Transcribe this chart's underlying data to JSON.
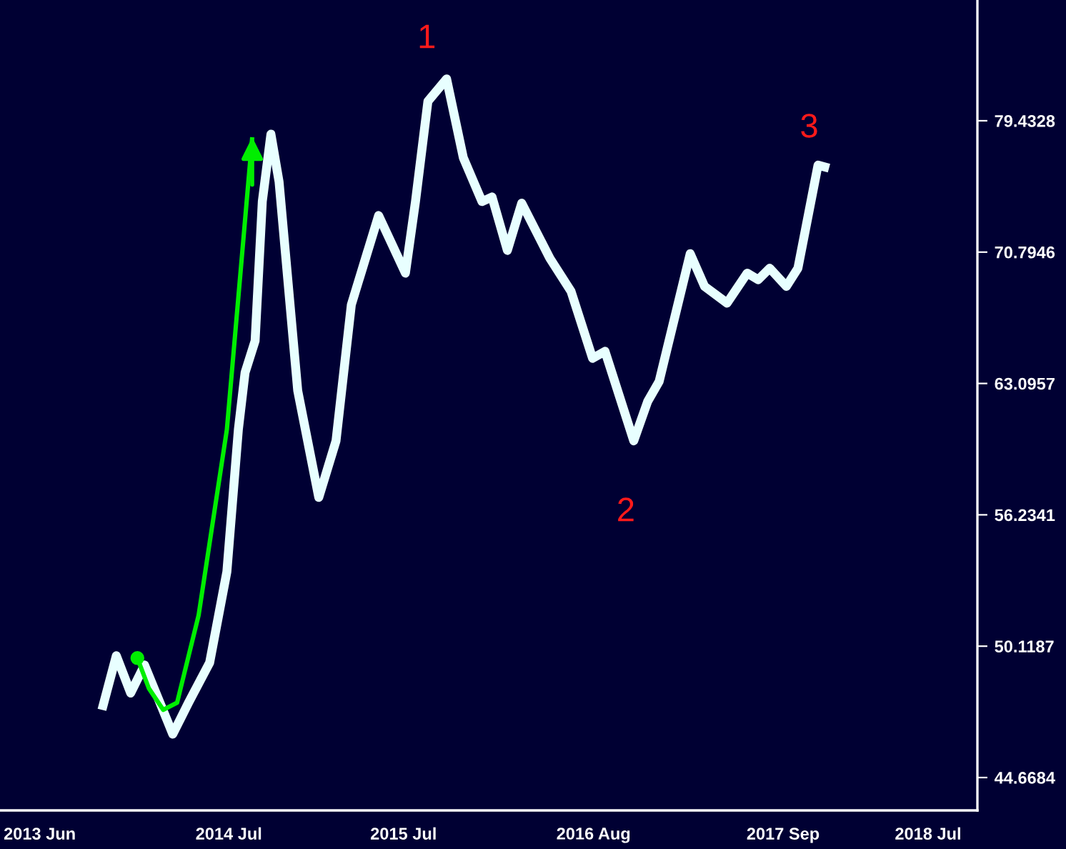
{
  "chart_data": {
    "type": "line",
    "log": "y",
    "series": [
      {
        "color": "#e8ffff",
        "x": [
          "2013-10-09",
          "2013-11-08",
          "2013-12-08",
          "2014-01-06",
          "2014-03-06",
          "2014-04-08",
          "2014-05-22",
          "2014-06-27",
          "2014-07-21",
          "2014-08-04",
          "2014-08-25",
          "2014-09-09",
          "2014-09-27",
          "2014-10-14",
          "2014-11-22",
          "2015-01-05",
          "2015-02-10",
          "2015-03-14",
          "2015-05-10",
          "2015-07-05",
          "2015-07-26",
          "2015-08-21",
          "2015-09-29",
          "2015-11-03",
          "2015-12-12",
          "2016-01-02",
          "2016-02-03",
          "2016-03-04",
          "2016-05-02",
          "2016-06-15",
          "2016-07-30",
          "2016-08-25",
          "2016-10-24",
          "2016-11-22",
          "2016-12-16",
          "2017-02-19",
          "2017-03-21",
          "2017-05-07",
          "2017-06-18",
          "2017-07-11",
          "2017-08-04",
          "2017-09-08",
          "2017-10-02",
          "2017-11-13",
          "2017-12-06"
        ],
        "values": [
          47.4,
          49.7,
          48.1,
          49.3,
          46.4,
          47.7,
          49.4,
          53.5,
          60.6,
          63.7,
          65.5,
          74.0,
          78.5,
          75.3,
          62.7,
          57.1,
          60.0,
          67.6,
          73.1,
          69.5,
          74.0,
          80.8,
          82.4,
          76.9,
          74.0,
          74.3,
          70.9,
          73.9,
          70.4,
          68.4,
          64.5,
          64.9,
          60.0,
          62.1,
          63.2,
          70.7,
          68.7,
          67.7,
          69.5,
          69.1,
          69.8,
          68.7,
          69.8,
          76.4,
          76.2
        ]
      },
      {
        "color": "#00ee00",
        "x": [
          "2013-12-22",
          "2014-01-15",
          "2014-02-14",
          "2014-03-15",
          "2014-04-29",
          "2014-06-27",
          "2014-08-19"
        ],
        "values": [
          49.6,
          48.3,
          47.4,
          47.7,
          51.5,
          60.6,
          78.3
        ]
      }
    ],
    "xlim": [
      "2013-03-10",
      "2018-10-12"
    ],
    "xticks": [
      {
        "value": "2013-06-01",
        "label": "2013 Jun"
      },
      {
        "value": "2014-07-01",
        "label": "2014 Jul"
      },
      {
        "value": "2015-07-01",
        "label": "2015 Jul"
      },
      {
        "value": "2016-08-01",
        "label": "2016 Aug"
      },
      {
        "value": "2017-09-01",
        "label": "2017 Sep"
      },
      {
        "value": "2018-07-01",
        "label": "2018 Jul"
      }
    ],
    "ylim": [
      43.4,
      88.3
    ],
    "yticks": [
      44.6684,
      50.1187,
      56.2341,
      63.0957,
      70.7946,
      79.4328
    ],
    "annotations": [
      {
        "text": "1",
        "x": "2015-09-29",
        "y": 82.4
      },
      {
        "text": "2",
        "x": "2016-10-24",
        "y": 60.0
      },
      {
        "text": "3",
        "x": "2017-12-06",
        "y": 76.2
      }
    ]
  }
}
